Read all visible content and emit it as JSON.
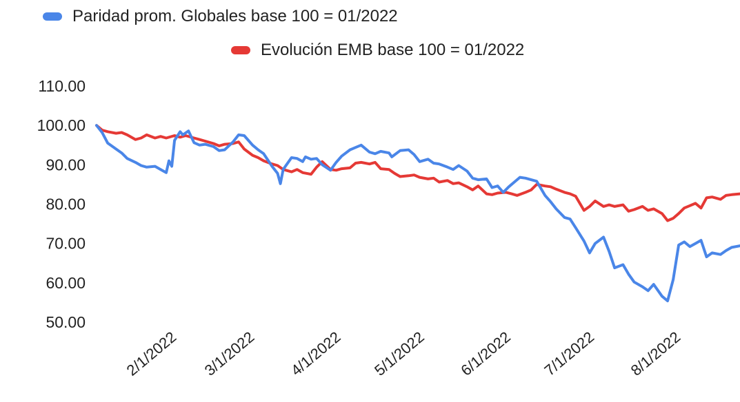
{
  "colors": {
    "series_blue": "#4a86e8",
    "series_red": "#e53935",
    "text": "#222222",
    "background": "#ffffff"
  },
  "chart_data": {
    "type": "line",
    "title": "",
    "xlabel": "",
    "ylabel": "",
    "ylim": [
      50,
      110
    ],
    "y_ticks": [
      "110.00",
      "100.00",
      "90.00",
      "80.00",
      "70.00",
      "60.00",
      "50.00"
    ],
    "x_ticks": [
      "2/1/2022",
      "3/1/2022",
      "4/1/2022",
      "5/1/2022",
      "6/1/2022",
      "7/1/2022",
      "8/1/2022"
    ],
    "xlim": [
      "2022-01-03",
      "2022-08-22"
    ],
    "grid": false,
    "legend_position": "top",
    "series": [
      {
        "name": "Paridad prom. Globales base 100 = 01/2022",
        "color": "#4a86e8",
        "points": [
          [
            "2022-01-03",
            100.0
          ],
          [
            "2022-01-05",
            98.2
          ],
          [
            "2022-01-07",
            95.5
          ],
          [
            "2022-01-10",
            94.0
          ],
          [
            "2022-01-12",
            93.0
          ],
          [
            "2022-01-14",
            91.6
          ],
          [
            "2022-01-17",
            90.6
          ],
          [
            "2022-01-19",
            89.8
          ],
          [
            "2022-01-21",
            89.4
          ],
          [
            "2022-01-24",
            89.6
          ],
          [
            "2022-01-26",
            88.8
          ],
          [
            "2022-01-28",
            88.0
          ],
          [
            "2022-01-29",
            91.0
          ],
          [
            "2022-01-30",
            89.6
          ],
          [
            "2022-01-31",
            96.2
          ],
          [
            "2022-02-02",
            98.4
          ],
          [
            "2022-02-03",
            97.6
          ],
          [
            "2022-02-05",
            98.6
          ],
          [
            "2022-02-07",
            95.6
          ],
          [
            "2022-02-09",
            95.0
          ],
          [
            "2022-02-11",
            95.2
          ],
          [
            "2022-02-14",
            94.6
          ],
          [
            "2022-02-16",
            93.6
          ],
          [
            "2022-02-18",
            93.8
          ],
          [
            "2022-02-21",
            95.8
          ],
          [
            "2022-02-23",
            97.6
          ],
          [
            "2022-02-25",
            97.4
          ],
          [
            "2022-02-28",
            95.0
          ],
          [
            "2022-03-02",
            93.8
          ],
          [
            "2022-03-04",
            92.8
          ],
          [
            "2022-03-07",
            89.6
          ],
          [
            "2022-03-09",
            87.8
          ],
          [
            "2022-03-10",
            85.2
          ],
          [
            "2022-03-11",
            88.8
          ],
          [
            "2022-03-14",
            91.8
          ],
          [
            "2022-03-16",
            91.6
          ],
          [
            "2022-03-18",
            90.8
          ],
          [
            "2022-03-19",
            92.0
          ],
          [
            "2022-03-21",
            91.4
          ],
          [
            "2022-03-23",
            91.6
          ],
          [
            "2022-03-25",
            90.0
          ],
          [
            "2022-03-28",
            88.6
          ],
          [
            "2022-03-30",
            90.6
          ],
          [
            "2022-04-01",
            92.2
          ],
          [
            "2022-04-04",
            93.8
          ],
          [
            "2022-04-06",
            94.4
          ],
          [
            "2022-04-08",
            95.0
          ],
          [
            "2022-04-11",
            93.2
          ],
          [
            "2022-04-13",
            92.8
          ],
          [
            "2022-04-15",
            93.4
          ],
          [
            "2022-04-18",
            93.0
          ],
          [
            "2022-04-19",
            92.0
          ],
          [
            "2022-04-22",
            93.6
          ],
          [
            "2022-04-25",
            93.8
          ],
          [
            "2022-04-27",
            92.6
          ],
          [
            "2022-04-29",
            90.8
          ],
          [
            "2022-05-02",
            91.4
          ],
          [
            "2022-05-04",
            90.4
          ],
          [
            "2022-05-06",
            90.2
          ],
          [
            "2022-05-09",
            89.4
          ],
          [
            "2022-05-11",
            88.8
          ],
          [
            "2022-05-13",
            89.8
          ],
          [
            "2022-05-16",
            88.4
          ],
          [
            "2022-05-18",
            86.6
          ],
          [
            "2022-05-20",
            86.2
          ],
          [
            "2022-05-23",
            86.4
          ],
          [
            "2022-05-25",
            84.2
          ],
          [
            "2022-05-27",
            84.6
          ],
          [
            "2022-05-29",
            83.0
          ],
          [
            "2022-05-31",
            84.4
          ],
          [
            "2022-06-02",
            85.6
          ],
          [
            "2022-06-04",
            86.8
          ],
          [
            "2022-06-06",
            86.6
          ],
          [
            "2022-06-08",
            86.2
          ],
          [
            "2022-06-10",
            85.8
          ],
          [
            "2022-06-13",
            82.2
          ],
          [
            "2022-06-15",
            80.6
          ],
          [
            "2022-06-17",
            78.8
          ],
          [
            "2022-06-20",
            76.6
          ],
          [
            "2022-06-22",
            76.2
          ],
          [
            "2022-06-24",
            74.0
          ],
          [
            "2022-06-27",
            70.6
          ],
          [
            "2022-06-29",
            67.6
          ],
          [
            "2022-07-01",
            70.0
          ],
          [
            "2022-07-04",
            71.6
          ],
          [
            "2022-07-06",
            68.0
          ],
          [
            "2022-07-08",
            63.8
          ],
          [
            "2022-07-11",
            64.6
          ],
          [
            "2022-07-13",
            62.2
          ],
          [
            "2022-07-15",
            60.2
          ],
          [
            "2022-07-18",
            59.0
          ],
          [
            "2022-07-20",
            58.0
          ],
          [
            "2022-07-22",
            59.6
          ],
          [
            "2022-07-25",
            56.6
          ],
          [
            "2022-07-27",
            55.4
          ],
          [
            "2022-07-29",
            60.8
          ],
          [
            "2022-07-31",
            69.6
          ],
          [
            "2022-08-02",
            70.4
          ],
          [
            "2022-08-04",
            69.2
          ],
          [
            "2022-08-06",
            70.0
          ],
          [
            "2022-08-08",
            70.8
          ],
          [
            "2022-08-10",
            66.6
          ],
          [
            "2022-08-12",
            67.6
          ],
          [
            "2022-08-15",
            67.2
          ],
          [
            "2022-08-17",
            68.2
          ],
          [
            "2022-08-19",
            69.0
          ],
          [
            "2022-08-22",
            69.4
          ]
        ]
      },
      {
        "name": "Evolución EMB base 100 = 01/2022",
        "color": "#e53935",
        "points": [
          [
            "2022-01-03",
            100.0
          ],
          [
            "2022-01-05",
            98.8
          ],
          [
            "2022-01-07",
            98.4
          ],
          [
            "2022-01-10",
            98.0
          ],
          [
            "2022-01-12",
            98.2
          ],
          [
            "2022-01-14",
            97.6
          ],
          [
            "2022-01-17",
            96.4
          ],
          [
            "2022-01-19",
            96.8
          ],
          [
            "2022-01-21",
            97.6
          ],
          [
            "2022-01-24",
            96.8
          ],
          [
            "2022-01-26",
            97.2
          ],
          [
            "2022-01-28",
            96.8
          ],
          [
            "2022-01-31",
            97.4
          ],
          [
            "2022-02-02",
            97.0
          ],
          [
            "2022-02-04",
            97.4
          ],
          [
            "2022-02-07",
            96.8
          ],
          [
            "2022-02-09",
            96.4
          ],
          [
            "2022-02-11",
            96.0
          ],
          [
            "2022-02-14",
            95.4
          ],
          [
            "2022-02-16",
            94.8
          ],
          [
            "2022-02-18",
            95.2
          ],
          [
            "2022-02-21",
            95.4
          ],
          [
            "2022-02-23",
            95.8
          ],
          [
            "2022-02-25",
            94.0
          ],
          [
            "2022-02-28",
            92.4
          ],
          [
            "2022-03-02",
            91.8
          ],
          [
            "2022-03-04",
            91.0
          ],
          [
            "2022-03-07",
            90.2
          ],
          [
            "2022-03-09",
            89.8
          ],
          [
            "2022-03-11",
            88.8
          ],
          [
            "2022-03-14",
            88.2
          ],
          [
            "2022-03-16",
            88.8
          ],
          [
            "2022-03-18",
            88.0
          ],
          [
            "2022-03-21",
            87.6
          ],
          [
            "2022-03-23",
            89.4
          ],
          [
            "2022-03-25",
            90.8
          ],
          [
            "2022-03-28",
            88.8
          ],
          [
            "2022-03-30",
            88.6
          ],
          [
            "2022-04-01",
            89.0
          ],
          [
            "2022-04-04",
            89.2
          ],
          [
            "2022-04-06",
            90.4
          ],
          [
            "2022-04-08",
            90.6
          ],
          [
            "2022-04-11",
            90.2
          ],
          [
            "2022-04-13",
            90.6
          ],
          [
            "2022-04-15",
            89.0
          ],
          [
            "2022-04-18",
            88.8
          ],
          [
            "2022-04-20",
            87.8
          ],
          [
            "2022-04-22",
            87.0
          ],
          [
            "2022-04-25",
            87.2
          ],
          [
            "2022-04-27",
            87.4
          ],
          [
            "2022-04-29",
            86.8
          ],
          [
            "2022-05-02",
            86.4
          ],
          [
            "2022-05-04",
            86.6
          ],
          [
            "2022-05-06",
            85.6
          ],
          [
            "2022-05-09",
            86.0
          ],
          [
            "2022-05-11",
            85.2
          ],
          [
            "2022-05-13",
            85.4
          ],
          [
            "2022-05-16",
            84.4
          ],
          [
            "2022-05-18",
            83.6
          ],
          [
            "2022-05-20",
            84.6
          ],
          [
            "2022-05-23",
            82.6
          ],
          [
            "2022-05-25",
            82.4
          ],
          [
            "2022-05-27",
            82.8
          ],
          [
            "2022-05-30",
            83.0
          ],
          [
            "2022-06-01",
            82.6
          ],
          [
            "2022-06-03",
            82.2
          ],
          [
            "2022-06-06",
            83.0
          ],
          [
            "2022-06-08",
            83.6
          ],
          [
            "2022-06-10",
            85.0
          ],
          [
            "2022-06-13",
            84.6
          ],
          [
            "2022-06-15",
            84.4
          ],
          [
            "2022-06-17",
            83.8
          ],
          [
            "2022-06-20",
            83.0
          ],
          [
            "2022-06-22",
            82.6
          ],
          [
            "2022-06-24",
            82.0
          ],
          [
            "2022-06-27",
            78.4
          ],
          [
            "2022-06-29",
            79.4
          ],
          [
            "2022-07-01",
            80.8
          ],
          [
            "2022-07-04",
            79.4
          ],
          [
            "2022-07-06",
            79.8
          ],
          [
            "2022-07-08",
            79.4
          ],
          [
            "2022-07-11",
            79.8
          ],
          [
            "2022-07-13",
            78.2
          ],
          [
            "2022-07-15",
            78.6
          ],
          [
            "2022-07-18",
            79.4
          ],
          [
            "2022-07-20",
            78.4
          ],
          [
            "2022-07-22",
            78.8
          ],
          [
            "2022-07-25",
            77.6
          ],
          [
            "2022-07-27",
            75.8
          ],
          [
            "2022-07-29",
            76.4
          ],
          [
            "2022-07-31",
            77.6
          ],
          [
            "2022-08-02",
            79.0
          ],
          [
            "2022-08-04",
            79.6
          ],
          [
            "2022-08-06",
            80.2
          ],
          [
            "2022-08-08",
            79.0
          ],
          [
            "2022-08-10",
            81.6
          ],
          [
            "2022-08-12",
            81.8
          ],
          [
            "2022-08-15",
            81.2
          ],
          [
            "2022-08-17",
            82.2
          ],
          [
            "2022-08-19",
            82.4
          ],
          [
            "2022-08-22",
            82.6
          ]
        ]
      }
    ]
  }
}
